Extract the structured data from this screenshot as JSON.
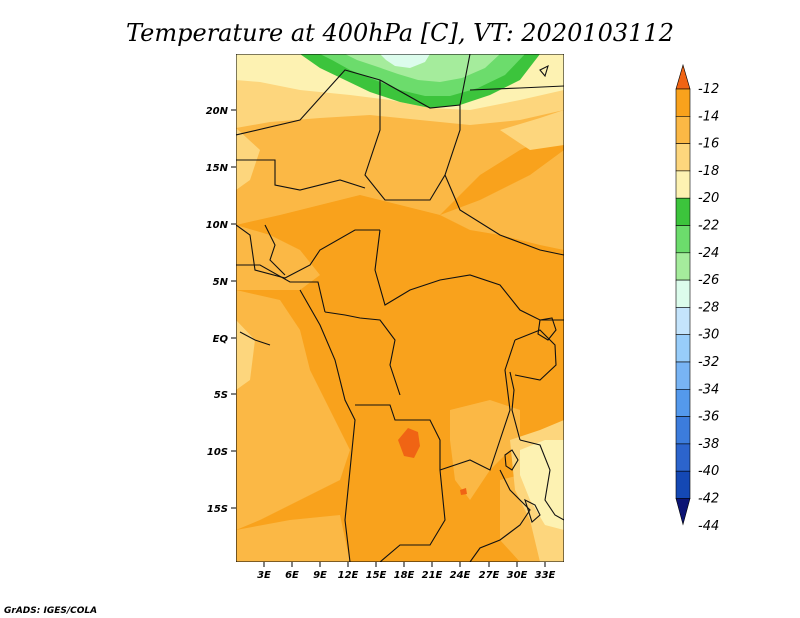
{
  "title": "Temperature at 400hPa [C], VT: 2020103112",
  "credit": "GrADS: IGES/COLA",
  "map": {
    "lat_labels": [
      "20N",
      "15N",
      "10N",
      "5N",
      "EQ",
      "5S",
      "10S",
      "15S"
    ],
    "lon_labels": [
      "3E",
      "6E",
      "9E",
      "12E",
      "15E",
      "18E",
      "21E",
      "24E",
      "27E",
      "30E",
      "33E"
    ],
    "background_color": "#f9a21c"
  },
  "colorbar": {
    "labels": [
      "-12",
      "-14",
      "-16",
      "-18",
      "-20",
      "-22",
      "-24",
      "-26",
      "-28",
      "-30",
      "-32",
      "-34",
      "-36",
      "-38",
      "-40",
      "-42",
      "-44"
    ],
    "colors": [
      "#f06414",
      "#f9a21c",
      "#fbb845",
      "#fdd67d",
      "#fdf2b2",
      "#3cc43c",
      "#6cdc6c",
      "#a5ec9c",
      "#dcfcec",
      "#c4e4fc",
      "#98cdfa",
      "#78b4f4",
      "#5499ec",
      "#3c7cdc",
      "#2c64cc",
      "#1448b4",
      "#0c1474"
    ]
  }
}
